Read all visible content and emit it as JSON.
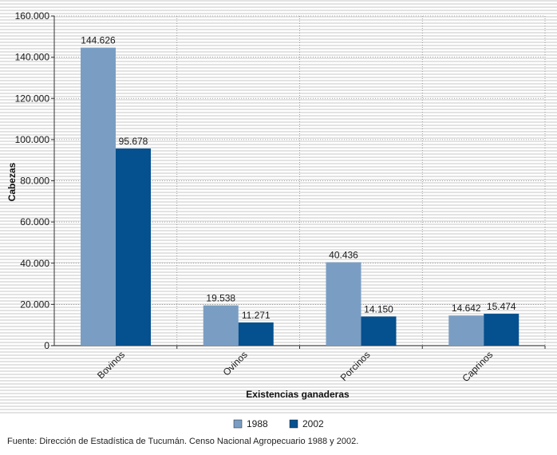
{
  "chart_data": {
    "type": "bar",
    "categories": [
      "Bovinos",
      "Ovinos",
      "Porcinos",
      "Caprinos"
    ],
    "series": [
      {
        "name": "1988",
        "values": [
          144626,
          19538,
          40436,
          14642
        ],
        "labels": [
          "144.626",
          "19.538",
          "40.436",
          "14.642"
        ],
        "color": "#7a9ec3"
      },
      {
        "name": "2002",
        "values": [
          95678,
          11271,
          14150,
          15474
        ],
        "labels": [
          "95.678",
          "11.271",
          "14.150",
          "15.474"
        ],
        "color": "#05508e"
      }
    ],
    "xlabel": "Existencias ganaderas",
    "ylabel": "Cabezas",
    "ylim": [
      0,
      160000
    ],
    "yticks": [
      0,
      20000,
      40000,
      60000,
      80000,
      100000,
      120000,
      140000,
      160000
    ],
    "ytick_labels": [
      "0",
      "20.000",
      "40.000",
      "60.000",
      "80.000",
      "100.000",
      "120.000",
      "140.000",
      "160.000"
    ],
    "grid": true,
    "legend": "bottom-center",
    "source": "Fuente: Dirección de Estadística de Tucumán. Censo Nacional Agropecuario 1988 y 2002."
  }
}
